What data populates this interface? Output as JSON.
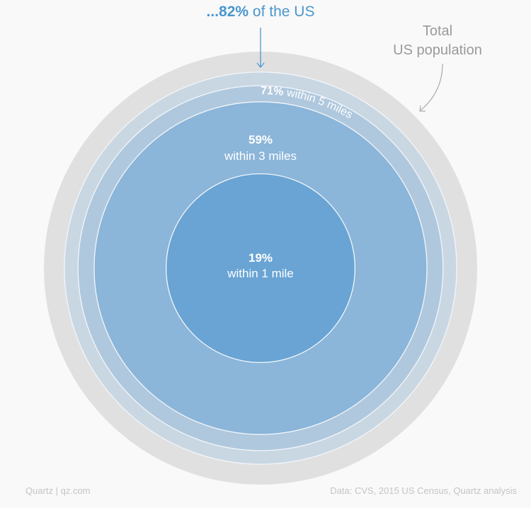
{
  "chart_data": {
    "type": "nested-circles",
    "total": {
      "label_line1": "Total",
      "label_line2": "US population",
      "value": 100,
      "color": "#e0e0e0"
    },
    "series": [
      {
        "pct_label": "...82%",
        "suffix": " of the US",
        "value": 82,
        "color": "#c9d7e3"
      },
      {
        "pct_label": "71%",
        "suffix": " within 5 miles",
        "value": 71,
        "color": "#afc8de"
      },
      {
        "pct_label": "59%",
        "suffix": "within 3 miles",
        "value": 59,
        "color": "#8bb5d9"
      },
      {
        "pct_label": "19%",
        "suffix": "within 1 mile",
        "value": 19,
        "color": "#69a4d4"
      }
    ],
    "accent_color": "#4a97cf"
  },
  "footer": {
    "left": "Quartz | qz.com",
    "right": "Data: CVS, 2015 US Census, Quartz analysis"
  }
}
